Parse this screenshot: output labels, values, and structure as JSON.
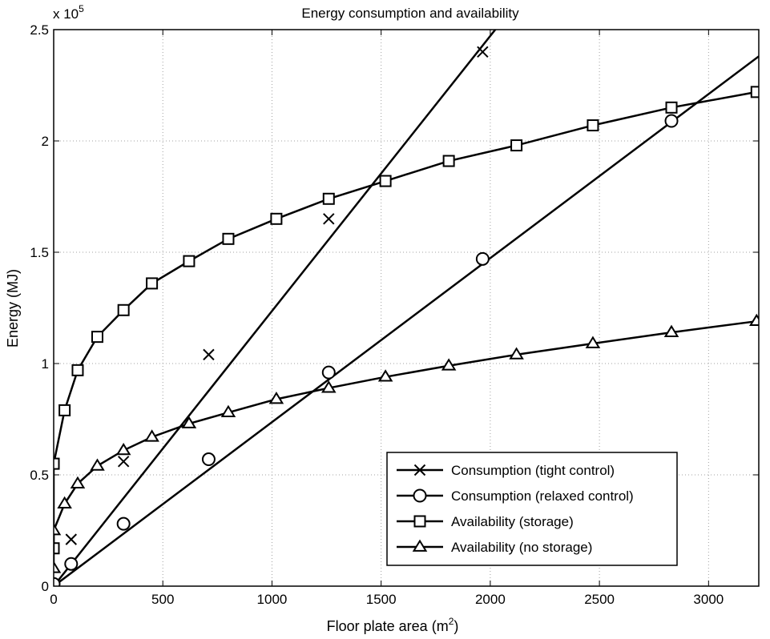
{
  "chart_data": {
    "type": "line",
    "title": "Energy consumption and availability",
    "xlabel": "Floor plate area (m",
    "xlabel_sup": "2",
    "xlabel_close": ")",
    "ylabel": "Energy (MJ)",
    "y_exponent_label": "x 10",
    "y_exponent_power": "5",
    "xlim": [
      0,
      3230
    ],
    "ylim": [
      0,
      2.5
    ],
    "xticks": [
      0,
      500,
      1000,
      1500,
      2000,
      2500,
      3000
    ],
    "yticks": [
      0,
      0.5,
      1,
      1.5,
      2,
      2.5
    ],
    "ytick_labels": [
      "0",
      "0.5",
      "1",
      "1.5",
      "2",
      "2.5"
    ],
    "grid": true,
    "legend_position": "lower-right",
    "series": [
      {
        "name": "Consumption (tight control)",
        "marker": "x",
        "line": [
          [
            0,
            0
          ],
          [
            2120,
            2.62
          ]
        ],
        "markers": [
          [
            0,
            0
          ],
          [
            80,
            0.21
          ],
          [
            320,
            0.56
          ],
          [
            710,
            1.04
          ],
          [
            1260,
            1.65
          ],
          [
            1965,
            2.4
          ]
        ]
      },
      {
        "name": "Consumption (relaxed control)",
        "marker": "circle",
        "line": [
          [
            0,
            0
          ],
          [
            3230,
            2.38
          ]
        ],
        "markers": [
          [
            0,
            0.01
          ],
          [
            80,
            0.1
          ],
          [
            320,
            0.28
          ],
          [
            710,
            0.57
          ],
          [
            1260,
            0.96
          ],
          [
            1965,
            1.47
          ],
          [
            2830,
            2.09
          ]
        ]
      },
      {
        "name": "Availability (storage)",
        "marker": "square",
        "line": [
          [
            0,
            0.17
          ],
          [
            0,
            0.55
          ],
          [
            50,
            0.79
          ],
          [
            110,
            0.97
          ],
          [
            200,
            1.12
          ],
          [
            320,
            1.24
          ],
          [
            450,
            1.36
          ],
          [
            620,
            1.46
          ],
          [
            800,
            1.56
          ],
          [
            1020,
            1.65
          ],
          [
            1260,
            1.74
          ],
          [
            1520,
            1.82
          ],
          [
            1810,
            1.91
          ],
          [
            2120,
            1.98
          ],
          [
            2470,
            2.07
          ],
          [
            2830,
            2.15
          ],
          [
            3220,
            2.22
          ]
        ],
        "markers": [
          [
            0,
            0.17
          ],
          [
            0,
            0.55
          ],
          [
            50,
            0.79
          ],
          [
            110,
            0.97
          ],
          [
            200,
            1.12
          ],
          [
            320,
            1.24
          ],
          [
            450,
            1.36
          ],
          [
            620,
            1.46
          ],
          [
            800,
            1.56
          ],
          [
            1020,
            1.65
          ],
          [
            1260,
            1.74
          ],
          [
            1520,
            1.82
          ],
          [
            1810,
            1.91
          ],
          [
            2120,
            1.98
          ],
          [
            2470,
            2.07
          ],
          [
            2830,
            2.15
          ],
          [
            3220,
            2.22
          ]
        ]
      },
      {
        "name": "Availability (no storage)",
        "marker": "triangle",
        "line": [
          [
            0,
            0.08
          ],
          [
            0,
            0.25
          ],
          [
            50,
            0.37
          ],
          [
            110,
            0.46
          ],
          [
            200,
            0.54
          ],
          [
            320,
            0.61
          ],
          [
            450,
            0.67
          ],
          [
            620,
            0.73
          ],
          [
            800,
            0.78
          ],
          [
            1020,
            0.84
          ],
          [
            1260,
            0.89
          ],
          [
            1520,
            0.94
          ],
          [
            1810,
            0.99
          ],
          [
            2120,
            1.04
          ],
          [
            2470,
            1.09
          ],
          [
            2830,
            1.14
          ],
          [
            3220,
            1.19
          ]
        ],
        "markers": [
          [
            0,
            0.08
          ],
          [
            0,
            0.25
          ],
          [
            50,
            0.37
          ],
          [
            110,
            0.46
          ],
          [
            200,
            0.54
          ],
          [
            320,
            0.61
          ],
          [
            450,
            0.67
          ],
          [
            620,
            0.73
          ],
          [
            800,
            0.78
          ],
          [
            1020,
            0.84
          ],
          [
            1260,
            0.89
          ],
          [
            1520,
            0.94
          ],
          [
            1810,
            0.99
          ],
          [
            2120,
            1.04
          ],
          [
            2470,
            1.09
          ],
          [
            2830,
            1.14
          ],
          [
            3220,
            1.19
          ]
        ]
      }
    ]
  }
}
